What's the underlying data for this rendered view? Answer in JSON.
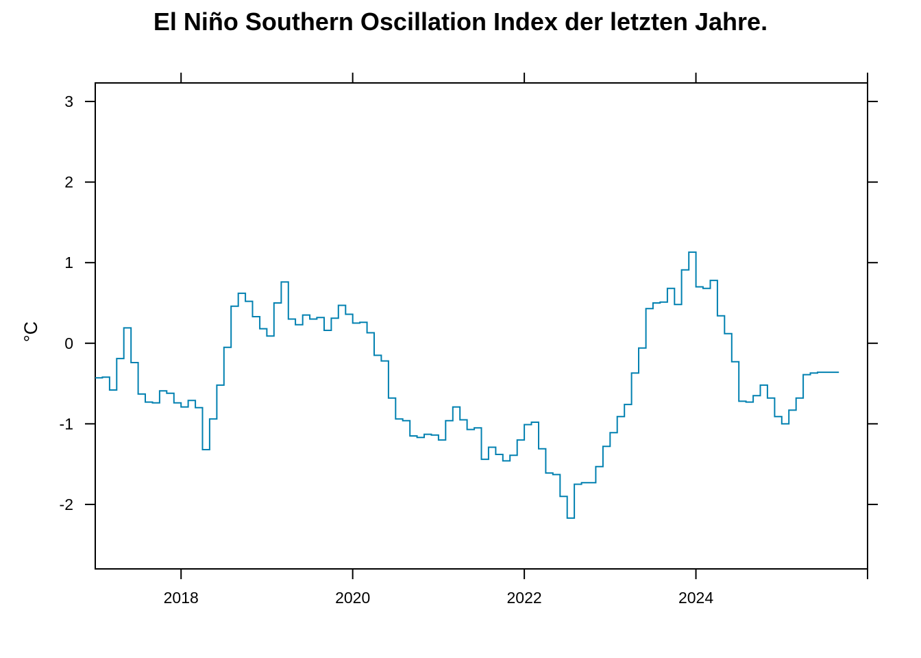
{
  "chart_data": {
    "type": "line",
    "step": true,
    "title": "El Niño Southern Oscillation Index der letzten Jahre.",
    "xlabel": "",
    "ylabel": "°C",
    "xlim": [
      2017.0,
      2026.0
    ],
    "ylim": [
      -2.8,
      3.23
    ],
    "grid": false,
    "x_ticks": [
      2018,
      2020,
      2022,
      2024
    ],
    "y_ticks": [
      -2,
      -1,
      0,
      1,
      2,
      3
    ],
    "series": [
      {
        "color": "#0080b0",
        "x": [
          2017.0,
          2017.083,
          2017.167,
          2017.25,
          2017.333,
          2017.417,
          2017.5,
          2017.583,
          2017.667,
          2017.75,
          2017.833,
          2017.917,
          2018.0,
          2018.083,
          2018.167,
          2018.25,
          2018.333,
          2018.417,
          2018.5,
          2018.583,
          2018.667,
          2018.75,
          2018.833,
          2018.917,
          2019.0,
          2019.083,
          2019.167,
          2019.25,
          2019.333,
          2019.417,
          2019.5,
          2019.583,
          2019.667,
          2019.75,
          2019.833,
          2019.917,
          2020.0,
          2020.083,
          2020.167,
          2020.25,
          2020.333,
          2020.417,
          2020.5,
          2020.583,
          2020.667,
          2020.75,
          2020.833,
          2020.917,
          2021.0,
          2021.083,
          2021.167,
          2021.25,
          2021.333,
          2021.417,
          2021.5,
          2021.583,
          2021.667,
          2021.75,
          2021.833,
          2021.917,
          2022.0,
          2022.083,
          2022.167,
          2022.25,
          2022.333,
          2022.417,
          2022.5,
          2022.583,
          2022.667,
          2022.75,
          2022.833,
          2022.917,
          2023.0,
          2023.083,
          2023.167,
          2023.25,
          2023.333,
          2023.417,
          2023.5,
          2023.583,
          2023.667,
          2023.75,
          2023.833,
          2023.917,
          2024.0,
          2024.083,
          2024.167,
          2024.25,
          2024.333,
          2024.417,
          2024.5,
          2024.583,
          2024.667,
          2024.75,
          2024.833,
          2024.917,
          2025.0,
          2025.083,
          2025.167,
          2025.25,
          2025.333,
          2025.417,
          2025.5,
          2025.583
        ],
        "y": [
          -0.43,
          -0.42,
          -0.58,
          -0.19,
          0.19,
          -0.24,
          -0.63,
          -0.73,
          -0.74,
          -0.59,
          -0.62,
          -0.74,
          -0.79,
          -0.71,
          -0.8,
          -1.32,
          -0.94,
          -0.52,
          -0.05,
          0.46,
          0.62,
          0.52,
          0.33,
          0.18,
          0.09,
          0.5,
          0.76,
          0.3,
          0.23,
          0.35,
          0.3,
          0.32,
          0.16,
          0.31,
          0.47,
          0.36,
          0.25,
          0.26,
          0.13,
          -0.15,
          -0.22,
          -0.68,
          -0.94,
          -0.96,
          -1.15,
          -1.17,
          -1.13,
          -1.14,
          -1.2,
          -0.96,
          -0.79,
          -0.95,
          -1.07,
          -1.05,
          -1.44,
          -1.29,
          -1.38,
          -1.46,
          -1.39,
          -1.2,
          -1.01,
          -0.98,
          -1.31,
          -1.61,
          -1.63,
          -1.9,
          -2.17,
          -1.75,
          -1.73,
          -1.73,
          -1.53,
          -1.28,
          -1.11,
          -0.91,
          -0.76,
          -0.37,
          -0.06,
          0.43,
          0.5,
          0.51,
          0.68,
          0.48,
          0.91,
          1.13,
          0.7,
          0.68,
          0.78,
          0.34,
          0.12,
          -0.23,
          -0.72,
          -0.73,
          -0.65,
          -0.52,
          -0.68,
          -0.91,
          -1.0,
          -0.83,
          -0.68,
          -0.39,
          -0.37,
          -0.36,
          -0.36,
          -0.36
        ]
      }
    ]
  }
}
